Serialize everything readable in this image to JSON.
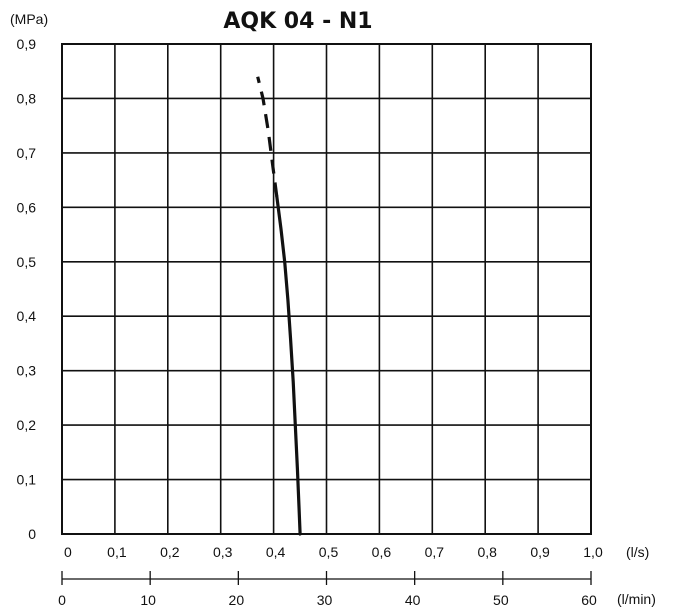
{
  "chart_data": {
    "type": "line",
    "title": "AQK 04 - N1",
    "ylabel": "(MPa)",
    "xlabel": "(l/s)",
    "xlabel2": "(l/min)",
    "xlim": [
      0,
      1.0
    ],
    "ylim": [
      0,
      0.9
    ],
    "x2lim": [
      0,
      60
    ],
    "grid": true,
    "x_tick_values": [
      0,
      0.1,
      0.2,
      0.3,
      0.4,
      0.5,
      0.6,
      0.7,
      0.8,
      0.9,
      1.0
    ],
    "x_tick_labels": [
      "0",
      "0,1",
      "0,2",
      "0,3",
      "0,4",
      "0,5",
      "0,6",
      "0,7",
      "0,8",
      "0,9",
      "1,0"
    ],
    "y_tick_values": [
      0,
      0.1,
      0.2,
      0.3,
      0.4,
      0.5,
      0.6,
      0.7,
      0.8,
      0.9
    ],
    "y_tick_labels": [
      "0",
      "0,1",
      "0,2",
      "0,3",
      "0,4",
      "0,5",
      "0,6",
      "0,7",
      "0,8",
      "0,9"
    ],
    "x2_tick_values": [
      0,
      10,
      20,
      30,
      40,
      50,
      60
    ],
    "x2_tick_labels": [
      "0",
      "10",
      "20",
      "30",
      "40",
      "50",
      "60"
    ],
    "series": [
      {
        "style": "solid",
        "x": [
          0.45,
          0.448,
          0.445,
          0.441,
          0.437,
          0.432,
          0.427,
          0.421,
          0.414,
          0.406
        ],
        "y": [
          0.0,
          0.05,
          0.12,
          0.2,
          0.28,
          0.36,
          0.43,
          0.5,
          0.56,
          0.62
        ]
      },
      {
        "style": "dashed",
        "x": [
          0.406,
          0.398,
          0.39,
          0.38,
          0.37
        ],
        "y": [
          0.62,
          0.68,
          0.74,
          0.8,
          0.84
        ]
      }
    ]
  }
}
